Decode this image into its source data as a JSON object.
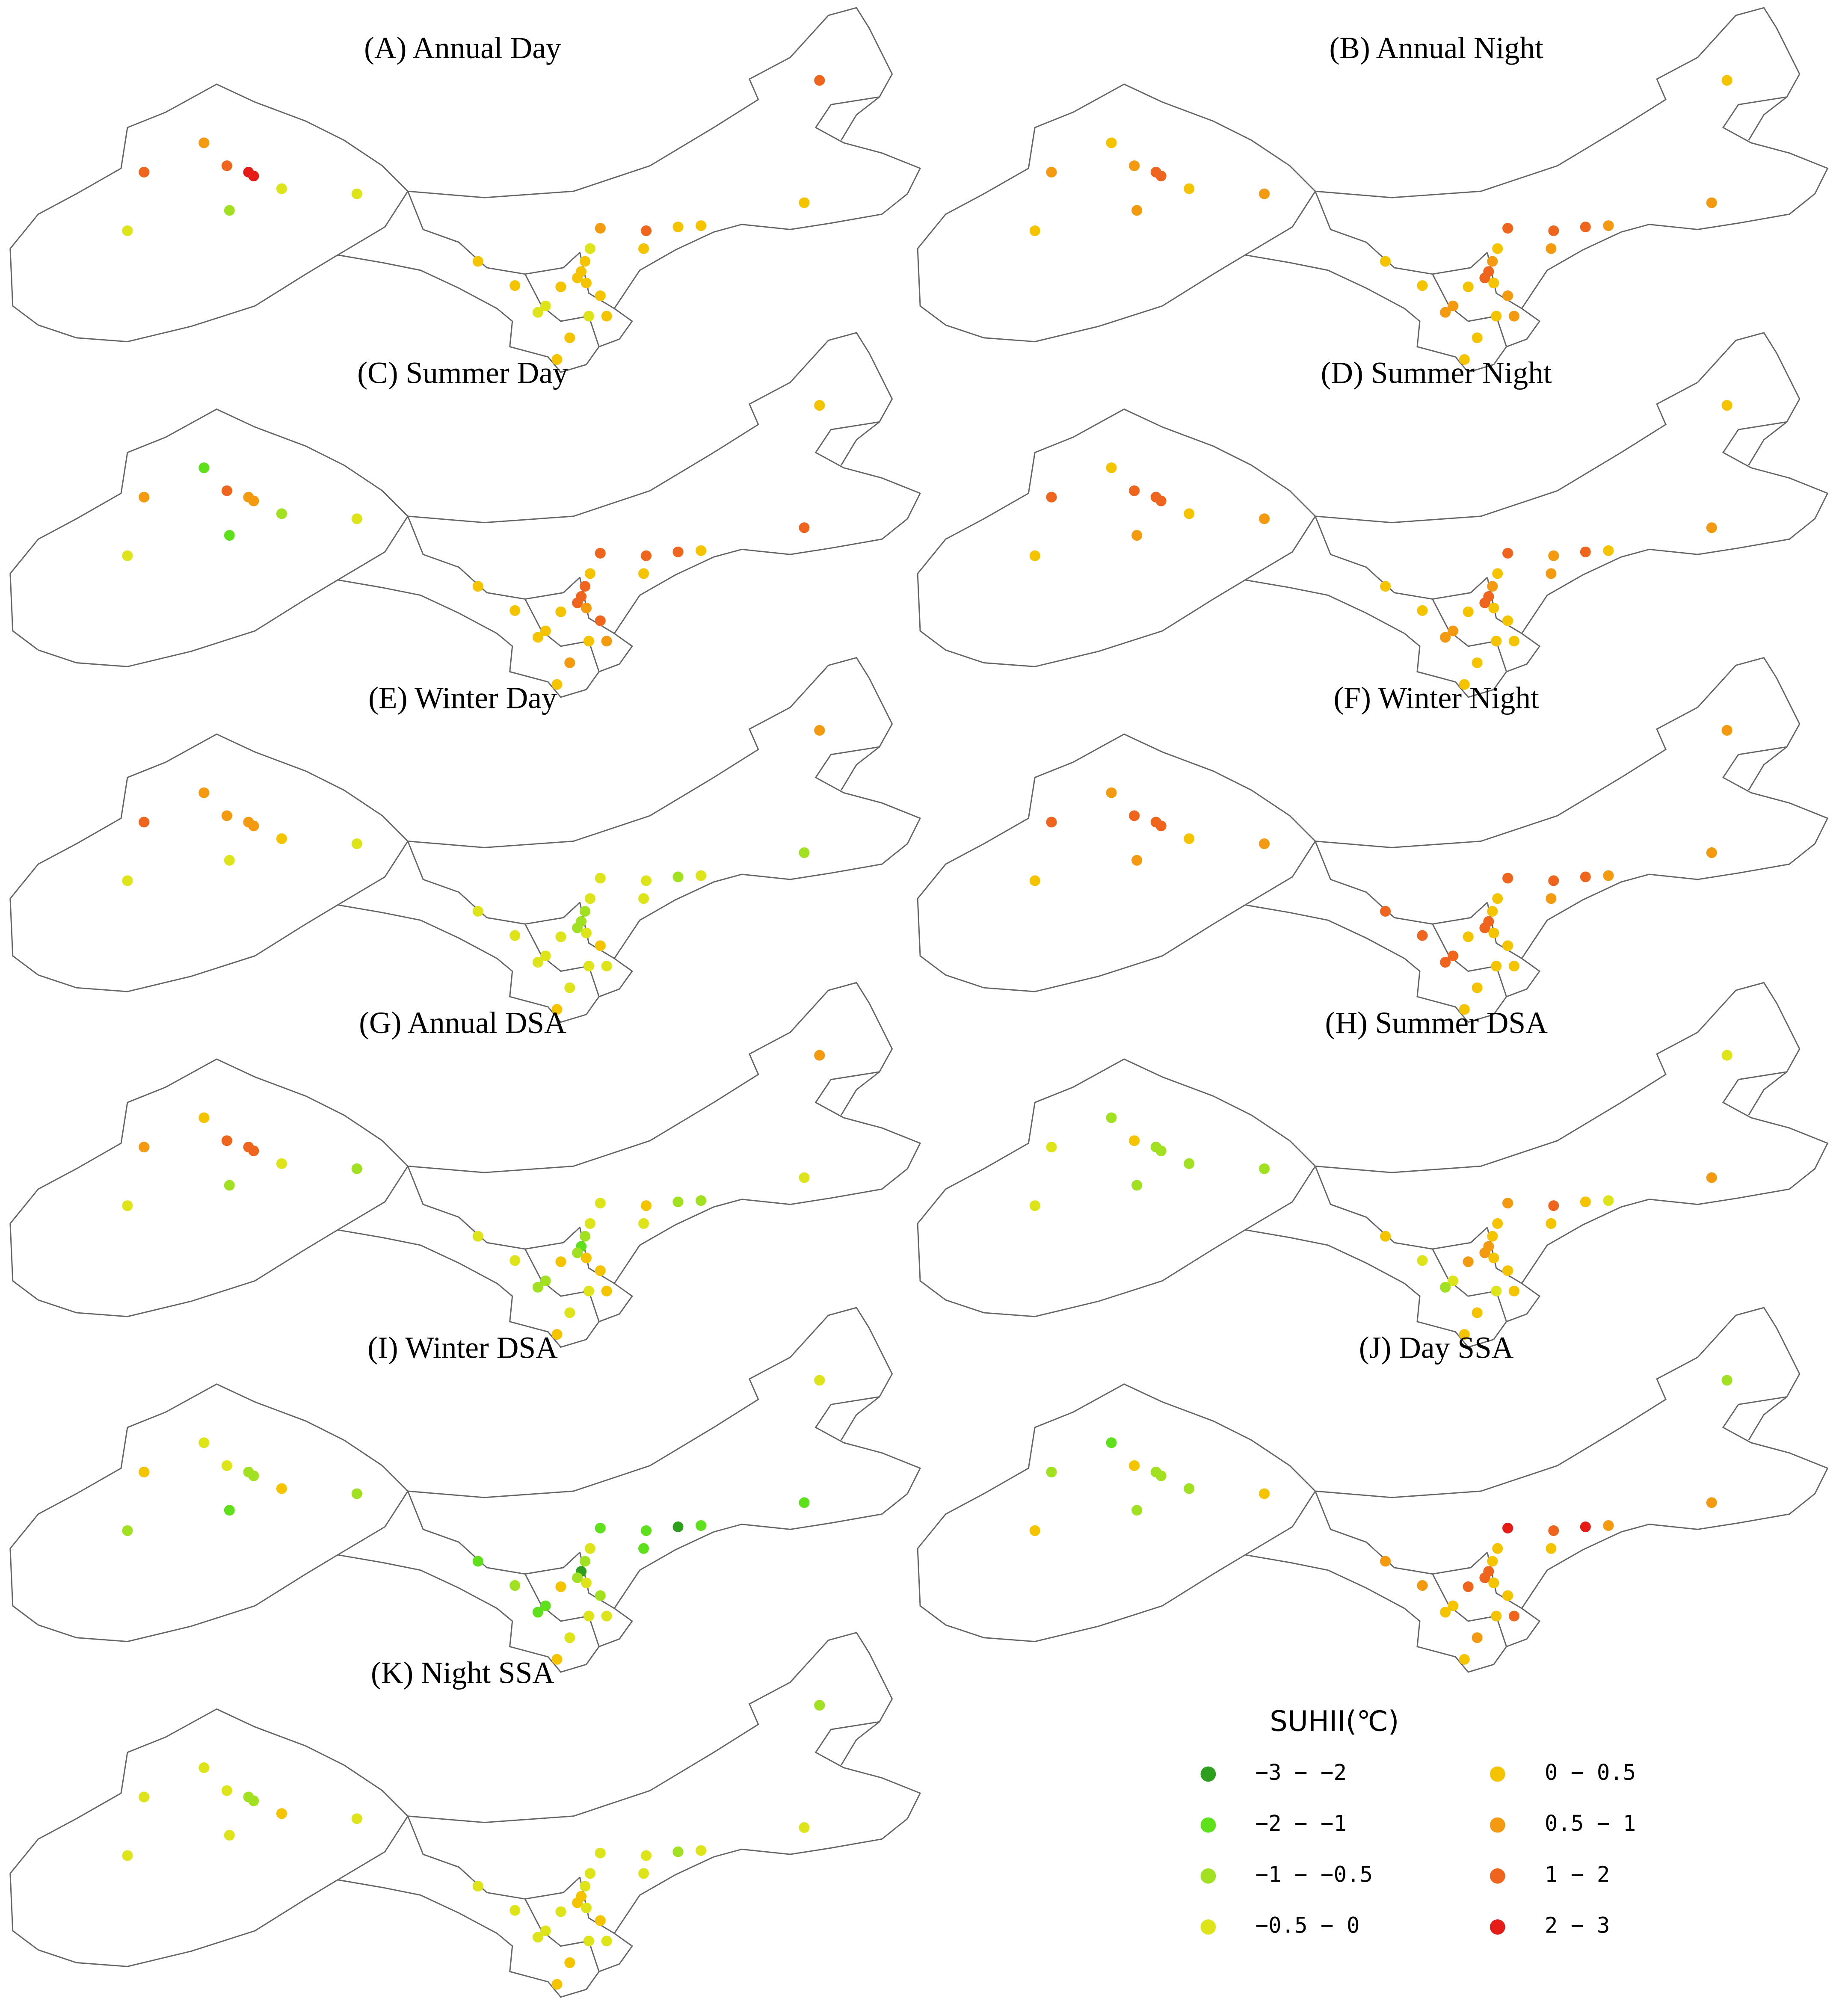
{
  "panels": [
    {
      "title": "(A)  Annual Day",
      "classes": [
        6,
        5,
        6,
        7,
        7,
        3,
        3,
        3,
        2,
        6,
        4,
        5,
        6,
        4,
        4,
        3,
        4,
        4,
        4,
        4,
        4,
        4,
        4,
        4,
        3,
        3,
        3,
        4,
        4,
        4,
        4
      ]
    },
    {
      "title": "(B)  Annual Night",
      "classes": [
        5,
        4,
        5,
        6,
        6,
        4,
        5,
        4,
        5,
        4,
        5,
        6,
        6,
        6,
        5,
        4,
        5,
        6,
        6,
        5,
        4,
        4,
        4,
        5,
        5,
        5,
        4,
        5,
        4,
        4,
        4
      ]
    },
    {
      "title": "(C)  Summer Day",
      "classes": [
        5,
        1,
        6,
        5,
        5,
        2,
        3,
        3,
        1,
        4,
        6,
        6,
        6,
        6,
        4,
        4,
        6,
        6,
        6,
        4,
        4,
        4,
        4,
        6,
        4,
        4,
        4,
        5,
        5,
        4,
        5
      ]
    },
    {
      "title": "(D)  Summer Night",
      "classes": [
        6,
        4,
        6,
        6,
        6,
        4,
        5,
        4,
        5,
        4,
        5,
        6,
        5,
        6,
        4,
        4,
        5,
        6,
        6,
        5,
        4,
        4,
        4,
        4,
        5,
        5,
        4,
        4,
        4,
        4,
        4
      ]
    },
    {
      "title": "(E)  Winter Day",
      "classes": [
        6,
        5,
        5,
        5,
        5,
        4,
        3,
        3,
        3,
        5,
        2,
        3,
        3,
        2,
        3,
        3,
        2,
        2,
        2,
        3,
        3,
        3,
        3,
        4,
        3,
        3,
        3,
        3,
        3,
        4,
        3
      ]
    },
    {
      "title": "(F)  Winter Night",
      "classes": [
        6,
        5,
        6,
        6,
        6,
        4,
        5,
        4,
        5,
        5,
        5,
        6,
        6,
        6,
        5,
        4,
        4,
        6,
        6,
        5,
        6,
        6,
        4,
        4,
        6,
        6,
        4,
        4,
        4,
        4,
        4
      ]
    },
    {
      "title": "(G)  Annual DSA",
      "classes": [
        5,
        4,
        6,
        6,
        6,
        3,
        2,
        3,
        2,
        5,
        3,
        3,
        4,
        2,
        2,
        3,
        2,
        1,
        2,
        3,
        3,
        3,
        4,
        4,
        2,
        2,
        3,
        4,
        3,
        4,
        4
      ]
    },
    {
      "title": "(H)  Summer DSA",
      "classes": [
        3,
        2,
        4,
        2,
        2,
        2,
        2,
        3,
        2,
        3,
        5,
        5,
        6,
        4,
        3,
        4,
        4,
        5,
        5,
        4,
        4,
        3,
        5,
        4,
        3,
        2,
        3,
        4,
        4,
        4,
        4
      ]
    },
    {
      "title": "(I)  Winter DSA",
      "classes": [
        4,
        3,
        3,
        2,
        2,
        4,
        2,
        2,
        1,
        3,
        1,
        1,
        1,
        0,
        1,
        3,
        2,
        0,
        2,
        1,
        1,
        2,
        4,
        2,
        1,
        1,
        3,
        3,
        3,
        4,
        3
      ]
    },
    {
      "title": "(J)  Day SSA",
      "classes": [
        2,
        1,
        4,
        2,
        2,
        2,
        4,
        4,
        2,
        2,
        5,
        7,
        6,
        7,
        5,
        4,
        4,
        6,
        6,
        4,
        5,
        5,
        6,
        4,
        4,
        4,
        4,
        6,
        5,
        4,
        4
      ]
    },
    {
      "title": "(K)  Night SSA",
      "classes": [
        3,
        3,
        3,
        2,
        2,
        4,
        3,
        3,
        3,
        2,
        3,
        3,
        3,
        2,
        3,
        3,
        3,
        4,
        4,
        3,
        3,
        3,
        3,
        4,
        3,
        3,
        3,
        3,
        4,
        4,
        3
      ]
    }
  ],
  "legend": {
    "title": "SUHII(℃)",
    "items": [
      {
        "label": "−3 − −2",
        "color": "#2e9e1e"
      },
      {
        "label": "−2 − −1",
        "color": "#5ee01a"
      },
      {
        "label": "−1 − −0.5",
        "color": "#a2e022"
      },
      {
        "label": "−0.5 − 0",
        "color": "#dde51a"
      },
      {
        "label": "0 − 0.5",
        "color": "#f5c400"
      },
      {
        "label": "0.5 − 1",
        "color": "#f39a10"
      },
      {
        "label": "1 − 2",
        "color": "#ef651e"
      },
      {
        "label": "2 − 3",
        "color": "#e41b17"
      }
    ]
  }
}
